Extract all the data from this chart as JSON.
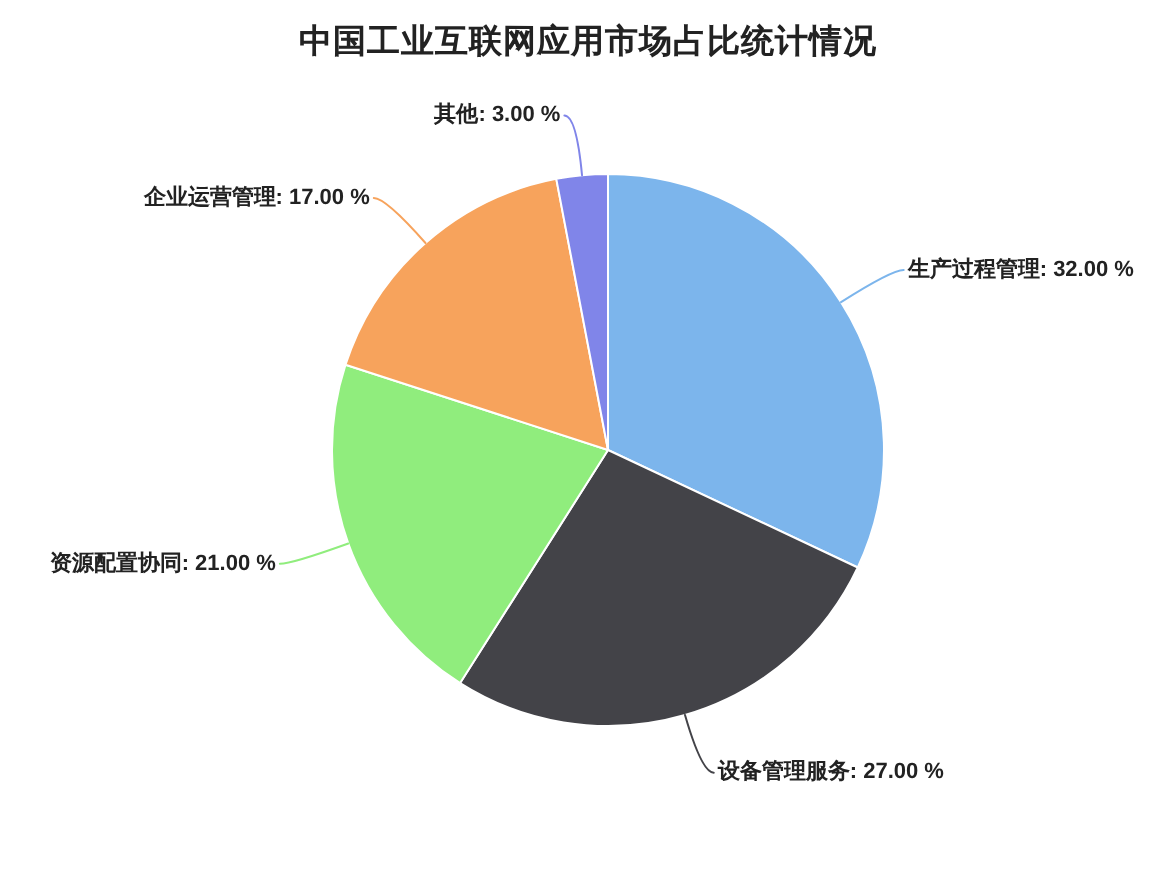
{
  "chart_data": {
    "type": "pie",
    "title": "中国工业互联网应用市场占比统计情况",
    "categories": [
      "生产过程管理",
      "设备管理服务",
      "资源配置协同",
      "企业运营管理",
      "其他"
    ],
    "values": [
      32,
      27,
      21,
      17,
      3
    ],
    "colors": [
      "#7cb5ec",
      "#434348",
      "#90ed7d",
      "#f7a35c",
      "#8085e9"
    ],
    "value_labels": [
      "32.00 %",
      "27.00 %",
      "21.00 %",
      "17.00 %",
      "3.00 %"
    ]
  }
}
